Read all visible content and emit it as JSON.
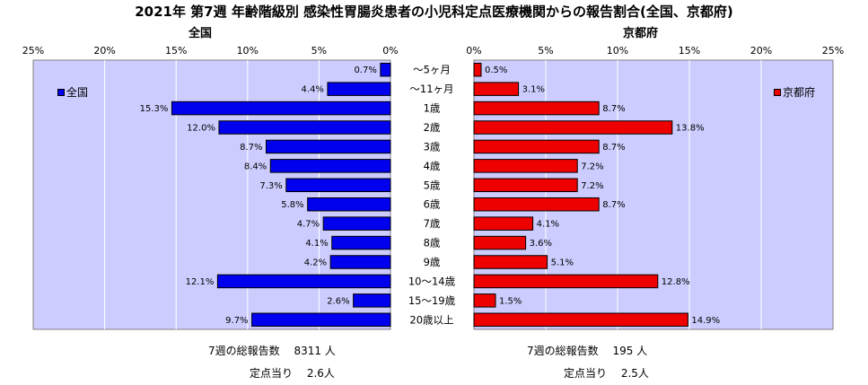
{
  "title": "2021年 第7週 年齢階級別 感染性胃腸炎患者の小児科定点医療機関からの報告割合(全国、京都府)",
  "colors": {
    "national": "#0000ee",
    "kyoto": "#ee0000",
    "plot_bg": "#ccccff"
  },
  "chart_data": [
    {
      "type": "bar",
      "orientation": "horizontal",
      "direction": "right-to-left",
      "title": "全国",
      "legend": "全国",
      "legend_position": "top-left",
      "categories": [
        "～5ヶ月",
        "～11ヶ月",
        "1歳",
        "2歳",
        "3歳",
        "4歳",
        "5歳",
        "6歳",
        "7歳",
        "8歳",
        "9歳",
        "10～14歳",
        "15～19歳",
        "20歳以上"
      ],
      "values": [
        0.7,
        4.4,
        15.3,
        12.0,
        8.7,
        8.4,
        7.3,
        5.8,
        4.7,
        4.1,
        4.2,
        12.1,
        2.6,
        9.7
      ],
      "value_labels": [
        "0.7%",
        "4.4%",
        "15.3%",
        "12.0%",
        "8.7%",
        "8.4%",
        "7.3%",
        "5.8%",
        "4.7%",
        "4.1%",
        "4.2%",
        "12.1%",
        "2.6%",
        "9.7%"
      ],
      "xlim": [
        0,
        25
      ],
      "ticks": [
        "0%",
        "5%",
        "10%",
        "15%",
        "20%",
        "25%"
      ],
      "grid": true
    },
    {
      "type": "bar",
      "orientation": "horizontal",
      "direction": "left-to-right",
      "title": "京都府",
      "legend": "京都府",
      "legend_position": "top-right",
      "categories": [
        "～5ヶ月",
        "～11ヶ月",
        "1歳",
        "2歳",
        "3歳",
        "4歳",
        "5歳",
        "6歳",
        "7歳",
        "8歳",
        "9歳",
        "10～14歳",
        "15～19歳",
        "20歳以上"
      ],
      "values": [
        0.5,
        3.1,
        8.7,
        13.8,
        8.7,
        7.2,
        7.2,
        8.7,
        4.1,
        3.6,
        5.1,
        12.8,
        1.5,
        14.9
      ],
      "value_labels": [
        "0.5%",
        "3.1%",
        "8.7%",
        "13.8%",
        "8.7%",
        "7.2%",
        "7.2%",
        "8.7%",
        "4.1%",
        "3.6%",
        "5.1%",
        "12.8%",
        "1.5%",
        "14.9%"
      ],
      "xlim": [
        0,
        25
      ],
      "ticks": [
        "0%",
        "5%",
        "10%",
        "15%",
        "20%",
        "25%"
      ],
      "grid": true
    }
  ],
  "footer": {
    "national_total": "7週の総報告数　 8311 人",
    "national_per_site": "定点当り　 2.6人",
    "kyoto_total": "7週の総報告数　 195 人",
    "kyoto_per_site": "定点当り　 2.5人"
  }
}
